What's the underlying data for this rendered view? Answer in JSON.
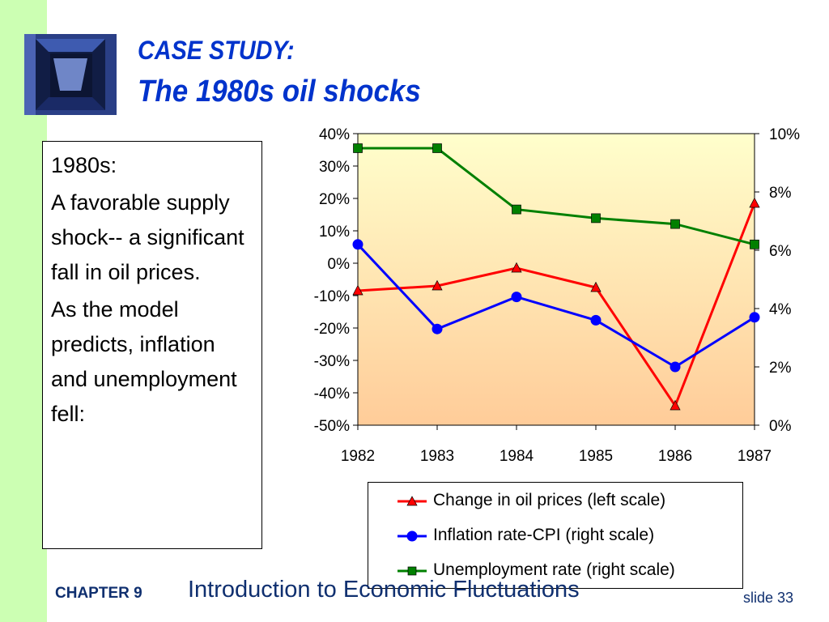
{
  "slide": {
    "title_line1": "CASE STUDY:",
    "title_line2": "The 1980s oil shocks",
    "footer_chapter": "CHAPTER 9",
    "footer_title": "Introduction to Economic Fluctuations",
    "slide_number": "slide 33",
    "text_box": [
      "1980s:",
      "A favorable supply shock-- a significant fall in oil prices.",
      "As the model predicts, inflation and unemployment fell:"
    ]
  },
  "chart_data": {
    "type": "line",
    "x": [
      "1982",
      "1983",
      "1984",
      "1985",
      "1986",
      "1987"
    ],
    "y_left_ticks": [
      "40%",
      "30%",
      "20%",
      "10%",
      "0%",
      "-10%",
      "-20%",
      "-30%",
      "-40%",
      "-50%"
    ],
    "y_right_ticks": [
      "10%",
      "8%",
      "6%",
      "4%",
      "2%",
      "0%"
    ],
    "ylim_left": [
      -50,
      40
    ],
    "ylim_right": [
      0,
      10
    ],
    "series": [
      {
        "name": "Change in oil prices (left scale)",
        "axis": "left",
        "color": "#ff0000",
        "marker": "triangle",
        "values": [
          -8.5,
          -7,
          -1.5,
          -7.5,
          -44,
          18.5
        ]
      },
      {
        "name": "Inflation rate-CPI (right scale)",
        "axis": "right",
        "color": "#0000ff",
        "marker": "circle",
        "values": [
          6.2,
          3.3,
          4.4,
          3.6,
          2.0,
          3.7
        ]
      },
      {
        "name": "Unemployment rate (right scale)",
        "axis": "right",
        "color": "#008000",
        "marker": "square",
        "values": [
          9.5,
          9.5,
          7.4,
          7.1,
          6.9,
          6.2
        ]
      }
    ],
    "legend_position": "bottom-right",
    "grid": false
  }
}
